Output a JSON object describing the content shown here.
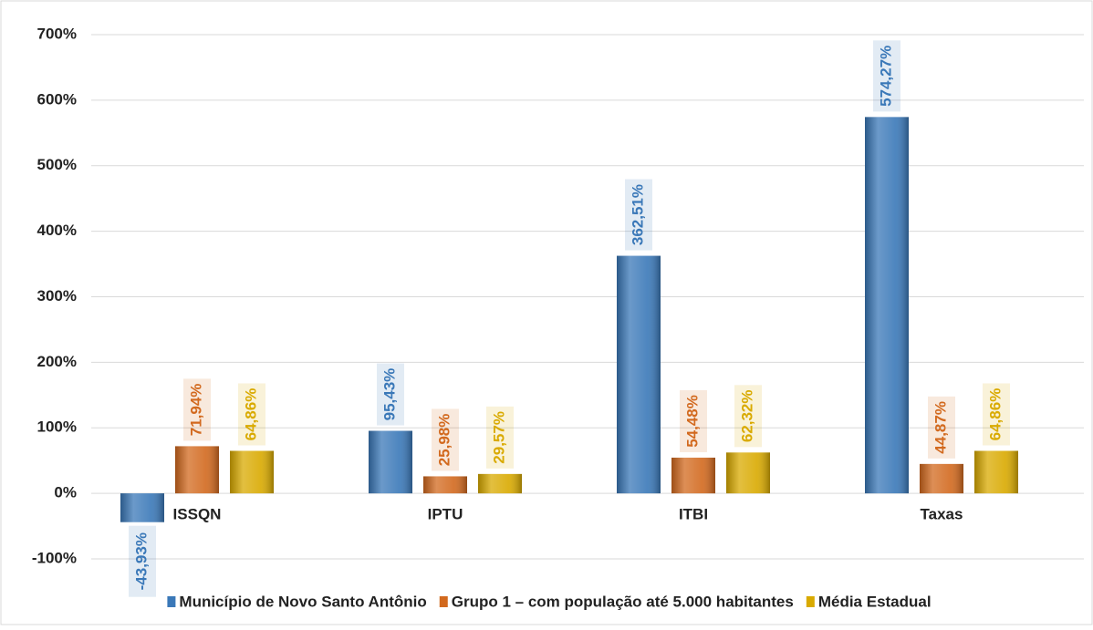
{
  "chart_data": {
    "type": "bar",
    "categories": [
      "ISSQN",
      "IPTU",
      "ITBI",
      "Taxas"
    ],
    "series": [
      {
        "name": "Município de Novo Santo Antônio",
        "color": "#3a78b8",
        "values": [
          -43.93,
          95.43,
          362.51,
          574.27
        ],
        "value_labels": [
          "-43,93%",
          "95,43%",
          "362,51%",
          "574,27%"
        ]
      },
      {
        "name": "Grupo 1 – com população até 5.000 habitantes",
        "color": "#d2691e",
        "values": [
          71.94,
          25.98,
          54.48,
          44.87
        ],
        "value_labels": [
          "71,94%",
          "25,98%",
          "54,48%",
          "44,87%"
        ]
      },
      {
        "name": "Média Estadual",
        "color": "#d9aa00",
        "values": [
          64.86,
          29.57,
          62.32,
          64.86
        ],
        "value_labels": [
          "64,86%",
          "29,57%",
          "62,32%",
          "64,86%"
        ]
      }
    ],
    "ylim": [
      -100,
      700
    ],
    "yticks": [
      {
        "value": -100,
        "label": "-100%"
      },
      {
        "value": 0,
        "label": "0%"
      },
      {
        "value": 100,
        "label": "100%"
      },
      {
        "value": 200,
        "label": "200%"
      },
      {
        "value": 300,
        "label": "300%"
      },
      {
        "value": 400,
        "label": "400%"
      },
      {
        "value": 500,
        "label": "500%"
      },
      {
        "value": 600,
        "label": "600%"
      },
      {
        "value": 700,
        "label": "700%"
      }
    ],
    "grid": true,
    "legend": "bottom"
  }
}
